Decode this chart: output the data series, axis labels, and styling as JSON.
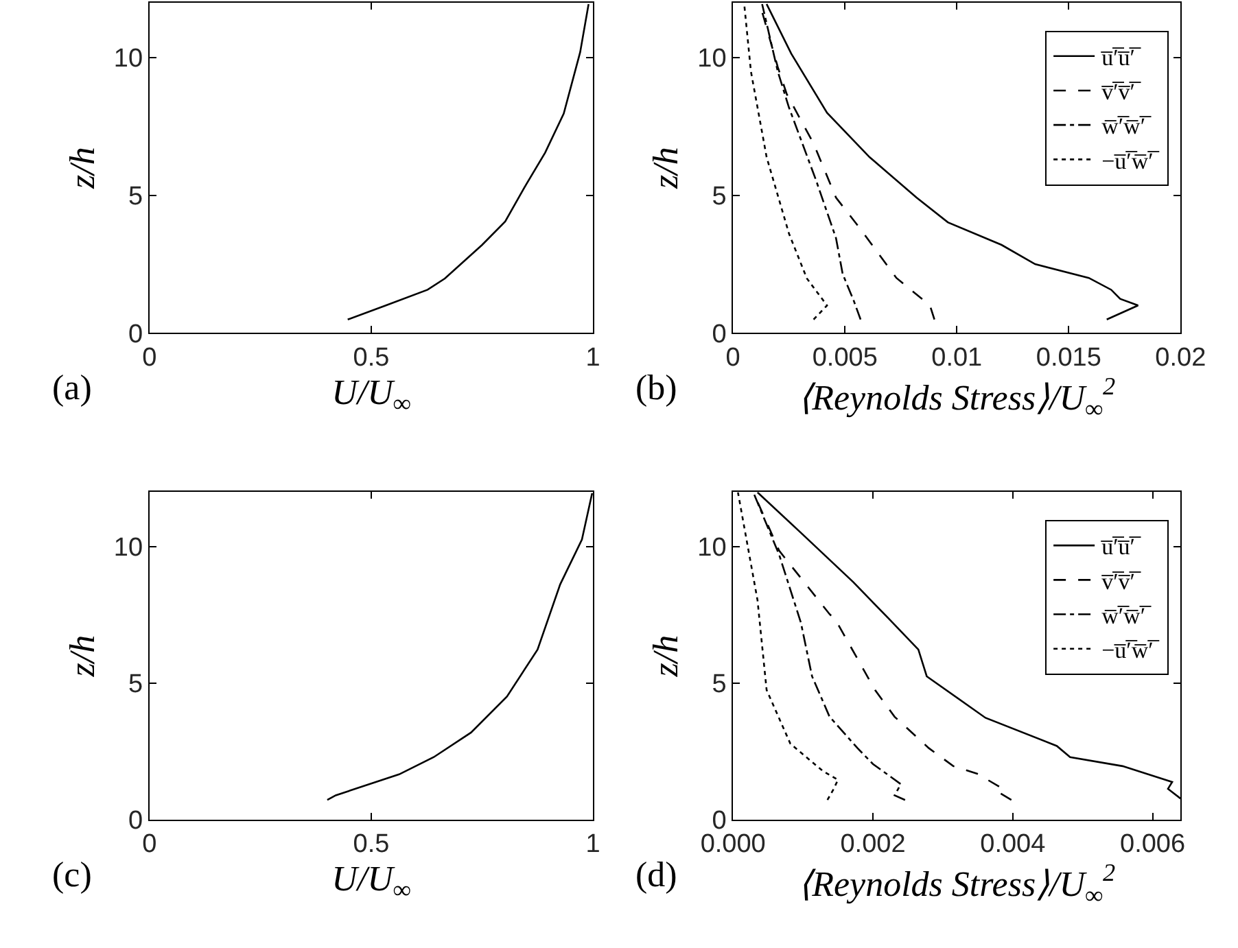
{
  "chart_data": [
    {
      "type": "line",
      "xlabel": "U/U$_{∞}$",
      "ylabel": "z/h",
      "xlim": [
        0,
        1
      ],
      "xticks": [
        0,
        0.5,
        1
      ],
      "ylim": [
        0,
        12
      ],
      "yticks": [
        0,
        5,
        10
      ],
      "annotations": [
        "(a)"
      ],
      "legend": false,
      "series": [
        {
          "color": "#000000",
          "line_style": "solid",
          "x": [
            0.447,
            0.533,
            0.627,
            0.666,
            0.75,
            0.802,
            0.848,
            0.892,
            0.934,
            0.971,
            0.99
          ],
          "values": [
            0.49,
            1.0,
            1.57,
            1.98,
            3.2,
            4.05,
            5.36,
            6.55,
            7.97,
            10.2,
            11.95
          ]
        }
      ]
    },
    {
      "type": "line",
      "xlabel": "⟨Reynolds Stress⟩/U$_{∞}$$^{2}$",
      "ylabel": "z/h",
      "xlim": [
        0,
        0.02
      ],
      "xticks": [
        0,
        0.005,
        0.01,
        0.015,
        0.02
      ],
      "ylim": [
        0,
        12
      ],
      "yticks": [
        0,
        5,
        10
      ],
      "annotations": [
        "(b)"
      ],
      "legend": "top right",
      "series": [
        {
          "name": "u̅′̅u̅′̅",
          "color": "#000000",
          "line_style": "solid",
          "x": [
            0.0167,
            0.0181,
            0.0173,
            0.0169,
            0.0159,
            0.0135,
            0.012,
            0.0096,
            0.0082,
            0.0061,
            0.0042,
            0.0026,
            0.0015
          ],
          "values": [
            0.49,
            1.0,
            1.24,
            1.57,
            2.0,
            2.5,
            3.2,
            4.02,
            4.92,
            6.39,
            8.0,
            10.15,
            11.95
          ]
        },
        {
          "name": "v̅′̅v̅′̅",
          "color": "#000000",
          "line_style": "dashed",
          "x": [
            0.009,
            0.0088,
            0.0073,
            0.0057,
            0.0046,
            0.0036,
            0.0024,
            0.002,
            0.0012
          ],
          "values": [
            0.49,
            1.0,
            2.0,
            3.77,
            4.92,
            6.88,
            8.68,
            9.66,
            11.95
          ]
        },
        {
          "name": "w̅′̅w̅′̅",
          "color": "#000000",
          "line_style": "dashdot",
          "x": [
            0.0057,
            0.0054,
            0.0049,
            0.0046,
            0.0037,
            0.0025,
            0.002,
            0.0013
          ],
          "values": [
            0.49,
            1.16,
            2.14,
            3.45,
            5.57,
            8.19,
            9.5,
            11.95
          ]
        },
        {
          "name": "−u̅′̅w̅′̅",
          "color": "#000000",
          "line_style": "dotted",
          "x": [
            0.0036,
            0.0042,
            0.0033,
            0.0025,
            0.0015,
            0.0008,
            0.0005
          ],
          "values": [
            0.49,
            1.0,
            1.98,
            3.61,
            6.39,
            9.5,
            11.95
          ]
        }
      ]
    },
    {
      "type": "line",
      "xlabel": "U/U$_{∞}$",
      "ylabel": "z/h",
      "xlim": [
        0,
        1
      ],
      "xticks": [
        0,
        0.5,
        1
      ],
      "ylim": [
        0,
        12
      ],
      "yticks": [
        0,
        5,
        10
      ],
      "annotations": [
        "(c)"
      ],
      "legend": false,
      "series": [
        {
          "color": "#000000",
          "line_style": "solid",
          "x": [
            0.401,
            0.42,
            0.563,
            0.641,
            0.725,
            0.806,
            0.875,
            0.926,
            0.975,
            0.998
          ],
          "values": [
            0.72,
            0.89,
            1.66,
            2.29,
            3.19,
            4.51,
            6.23,
            8.62,
            10.26,
            11.96
          ]
        }
      ]
    },
    {
      "type": "line",
      "xlabel": "⟨Reynolds Stress⟩/U$_{∞}$$^{2}$",
      "ylabel": "z/h",
      "xlim": [
        0,
        0.0064
      ],
      "xticks": [
        {
          "value": 0,
          "label": "0.000"
        },
        {
          "value": 0.002,
          "label": "0.002"
        },
        {
          "value": 0.004,
          "label": "0.004"
        },
        {
          "value": 0.006,
          "label": "0.006"
        }
      ],
      "ylim": [
        0,
        12
      ],
      "yticks": [
        0,
        5,
        10
      ],
      "annotations": [
        "(d)"
      ],
      "legend": "top right",
      "series": [
        {
          "name": "u̅′̅u̅′̅",
          "color": "#000000",
          "line_style": "solid",
          "x": [
            0.0064,
            0.00622,
            0.00628,
            0.00557,
            0.00482,
            0.00463,
            0.00361,
            0.00277,
            0.00265,
            0.00222,
            0.00172,
            0.00097,
            0.00035
          ],
          "values": [
            0.77,
            1.13,
            1.38,
            1.96,
            2.29,
            2.7,
            3.73,
            5.25,
            6.23,
            7.38,
            8.7,
            10.51,
            11.99
          ]
        },
        {
          "name": "v̅′̅v̅′̅",
          "color": "#000000",
          "line_style": "dashed",
          "x": [
            0.00398,
            0.0038,
            0.00386,
            0.00364,
            0.00352,
            0.00315,
            0.0028,
            0.00231,
            0.00203,
            0.00147,
            0.00138,
            0.00066,
            0.00029
          ],
          "values": [
            0.72,
            1.0,
            1.13,
            1.46,
            1.66,
            1.96,
            2.62,
            3.77,
            4.75,
            7.3,
            7.53,
            9.85,
            11.99
          ]
        },
        {
          "name": "w̅′̅w̅′̅",
          "color": "#000000",
          "line_style": "dashdot",
          "x": [
            0.00246,
            0.00231,
            0.0024,
            0.002,
            0.00178,
            0.00138,
            0.00113,
            0.00097,
            0.00066,
            0.00029
          ],
          "values": [
            0.72,
            0.89,
            1.3,
            2.04,
            2.62,
            3.77,
            5.25,
            7.22,
            9.7,
            11.99
          ]
        },
        {
          "name": "−u̅′̅w̅′̅",
          "color": "#000000",
          "line_style": "dotted",
          "x": [
            0.00135,
            0.00144,
            0.0015,
            0.00128,
            0.00082,
            0.00048,
            0.00035,
            7e-05
          ],
          "values": [
            0.72,
            1.13,
            1.46,
            1.79,
            2.78,
            4.75,
            8.04,
            11.99
          ]
        }
      ]
    }
  ]
}
